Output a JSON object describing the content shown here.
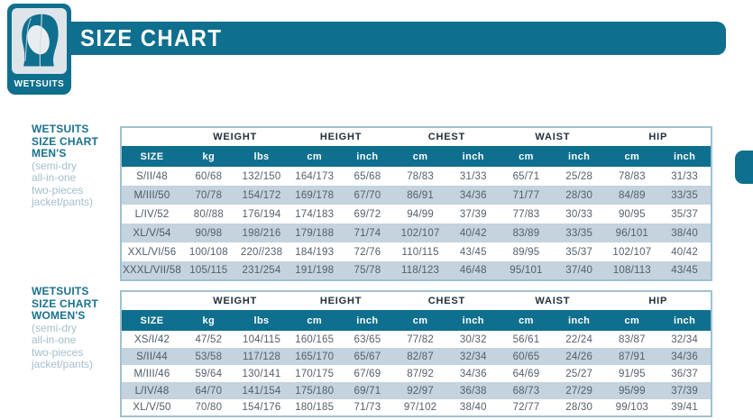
{
  "header": {
    "title": "SIZE CHART",
    "badge_label": "WETSUITS"
  },
  "colors": {
    "teal": "#0f6f8e",
    "stripe": "#c4d3dd",
    "table_border": "#9dc2d1",
    "label_teal": "#19718f",
    "label_light": "#a3bfcc"
  },
  "icons": {
    "badge_icon": "wetsuit-hood-icon"
  },
  "sections": [
    {
      "id": "men",
      "label_lines": [
        "WETSUITS",
        "SIZE CHART",
        "MEN'S"
      ],
      "sub_label_lines": [
        "(semi-dry",
        "all-in-one",
        "two-pieces",
        "jacket/pants)"
      ],
      "group_headers": [
        "WEIGHT",
        "HEIGHT",
        "CHEST",
        "WAIST",
        "HIP"
      ],
      "unit_headers": [
        "SIZE",
        "kg",
        "lbs",
        "cm",
        "inch",
        "cm",
        "inch",
        "cm",
        "inch",
        "cm",
        "inch"
      ],
      "rows": [
        [
          "S/II/48",
          "60/68",
          "132/150",
          "164/173",
          "65/68",
          "78/83",
          "31/33",
          "65/71",
          "25/28",
          "78/83",
          "31/33"
        ],
        [
          "M/III/50",
          "70/78",
          "154/172",
          "169/178",
          "67/70",
          "86/91",
          "34/36",
          "71/77",
          "28/30",
          "84/89",
          "33/35"
        ],
        [
          "L/IV/52",
          "80//88",
          "176/194",
          "174/183",
          "69/72",
          "94/99",
          "37/39",
          "77/83",
          "30/33",
          "90/95",
          "35/37"
        ],
        [
          "XL/V/54",
          "90/98",
          "198/216",
          "179/188",
          "71/74",
          "102/107",
          "40/42",
          "83/89",
          "33/35",
          "96/101",
          "38/40"
        ],
        [
          "XXL/VI/56",
          "100/108",
          "220//238",
          "184/193",
          "72/76",
          "110/115",
          "43/45",
          "89/95",
          "35/37",
          "102/107",
          "40/42"
        ],
        [
          "XXXL/VII/58",
          "105/115",
          "231/254",
          "191/198",
          "75/78",
          "118/123",
          "46/48",
          "95/101",
          "37/40",
          "108/113",
          "43/45"
        ]
      ]
    },
    {
      "id": "women",
      "label_lines": [
        "WETSUITS",
        "SIZE CHART",
        "WOMEN'S"
      ],
      "sub_label_lines": [
        "(semi-dry",
        "all-in-one",
        "two-pieces",
        "jacket/pants)"
      ],
      "group_headers": [
        "WEIGHT",
        "HEIGHT",
        "CHEST",
        "WAIST",
        "HIP"
      ],
      "unit_headers": [
        "SIZE",
        "kg",
        "lbs",
        "cm",
        "inch",
        "cm",
        "inch",
        "cm",
        "inch",
        "cm",
        "inch"
      ],
      "rows": [
        [
          "XS/I/42",
          "47/52",
          "104/115",
          "160/165",
          "63/65",
          "77/82",
          "30/32",
          "56/61",
          "22/24",
          "83/87",
          "32/34"
        ],
        [
          "S/II/44",
          "53/58",
          "117/128",
          "165/170",
          "65/67",
          "82/87",
          "32/34",
          "60/65",
          "24/26",
          "87/91",
          "34/36"
        ],
        [
          "M/III/46",
          "59/64",
          "130/141",
          "170/175",
          "67/69",
          "87/92",
          "34/36",
          "64/69",
          "25/27",
          "91/95",
          "36/37"
        ],
        [
          "L/IV/48",
          "64/70",
          "141/154",
          "175/180",
          "69/71",
          "92/97",
          "36/38",
          "68/73",
          "27/29",
          "95/99",
          "37/39"
        ],
        [
          "XL/V/50",
          "70/80",
          "154/176",
          "180/185",
          "71/73",
          "97/102",
          "38/40",
          "72/77",
          "28/30",
          "99/103",
          "39/41"
        ]
      ]
    }
  ]
}
